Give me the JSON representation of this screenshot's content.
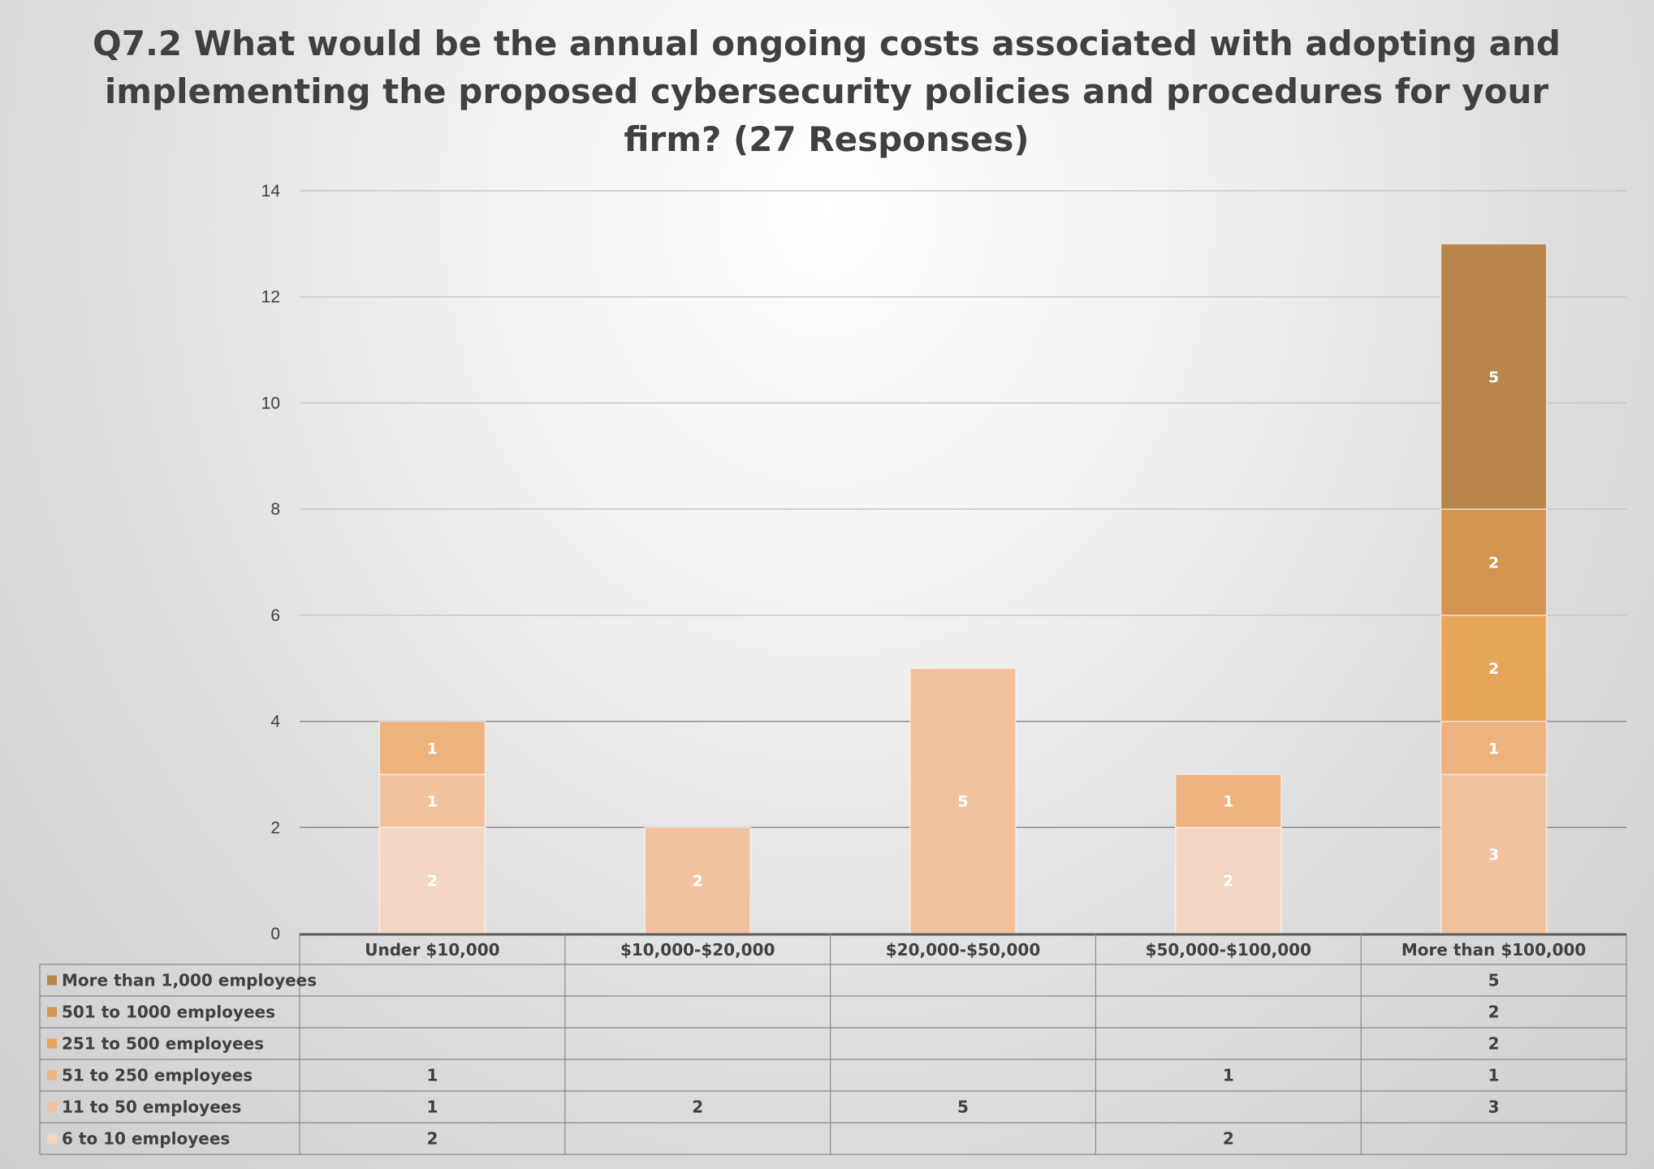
{
  "chart_data": {
    "type": "bar",
    "stacked": true,
    "title_lines": [
      "Q7.2 What would be the annual ongoing costs associated with adopting and",
      "implementing the proposed cybersecurity policies and procedures for your",
      "firm? (27 Responses)"
    ],
    "categories": [
      "Under $10,000",
      "$10,000-$20,000",
      "$20,000-$50,000",
      "$50,000-$100,000",
      "More than $100,000"
    ],
    "ylim": [
      0,
      14
    ],
    "yticks": [
      0,
      2,
      4,
      6,
      8,
      10,
      12,
      14
    ],
    "grid": true,
    "legend": "data-table-below",
    "series": [
      {
        "name": "6 to 10 employees",
        "color": "#f3d6c1",
        "values": [
          2,
          null,
          null,
          2,
          null
        ]
      },
      {
        "name": "11 to 50 employees",
        "color": "#f2c29e",
        "values": [
          1,
          2,
          5,
          null,
          3
        ]
      },
      {
        "name": "51 to 250 employees",
        "color": "#eeb27f",
        "values": [
          1,
          null,
          null,
          1,
          1
        ]
      },
      {
        "name": "251 to 500 employees",
        "color": "#e6a558",
        "values": [
          null,
          null,
          null,
          null,
          2
        ]
      },
      {
        "name": "501 to 1000 employees",
        "color": "#d2954f",
        "values": [
          null,
          null,
          null,
          null,
          2
        ]
      },
      {
        "name": "More than 1,000 employees",
        "color": "#b8864a",
        "values": [
          null,
          null,
          null,
          null,
          5
        ]
      }
    ]
  }
}
